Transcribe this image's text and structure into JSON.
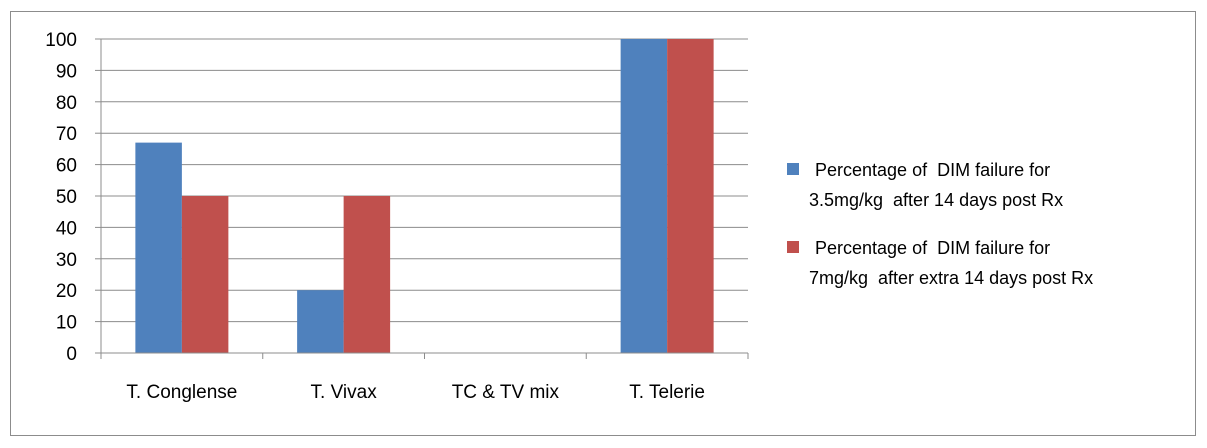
{
  "chart_data": {
    "type": "bar",
    "categories": [
      "T. Conglense",
      "T. Vivax",
      "TC & TV mix",
      "T. Telerie"
    ],
    "series": [
      {
        "name": "Percentage of  DIM failure for 3.5mg/kg  after 14 days post Rx",
        "name_lines": [
          "Percentage of  DIM failure for",
          "3.5mg/kg  after 14 days post Rx"
        ],
        "values": [
          67,
          20,
          0,
          100
        ],
        "color": "#4f81bd"
      },
      {
        "name": "Percentage of  DIM failure for 7mg/kg  after extra 14 days post Rx",
        "name_lines": [
          "Percentage of  DIM failure for",
          "7mg/kg  after extra 14 days post Rx"
        ],
        "values": [
          50,
          50,
          0,
          100
        ],
        "color": "#c0504d"
      }
    ],
    "yticks": [
      0,
      10,
      20,
      30,
      40,
      50,
      60,
      70,
      80,
      90,
      100
    ],
    "ylim": [
      0,
      100
    ],
    "grid": true,
    "legend_position": "right",
    "title": "",
    "xlabel": "",
    "ylabel": ""
  }
}
